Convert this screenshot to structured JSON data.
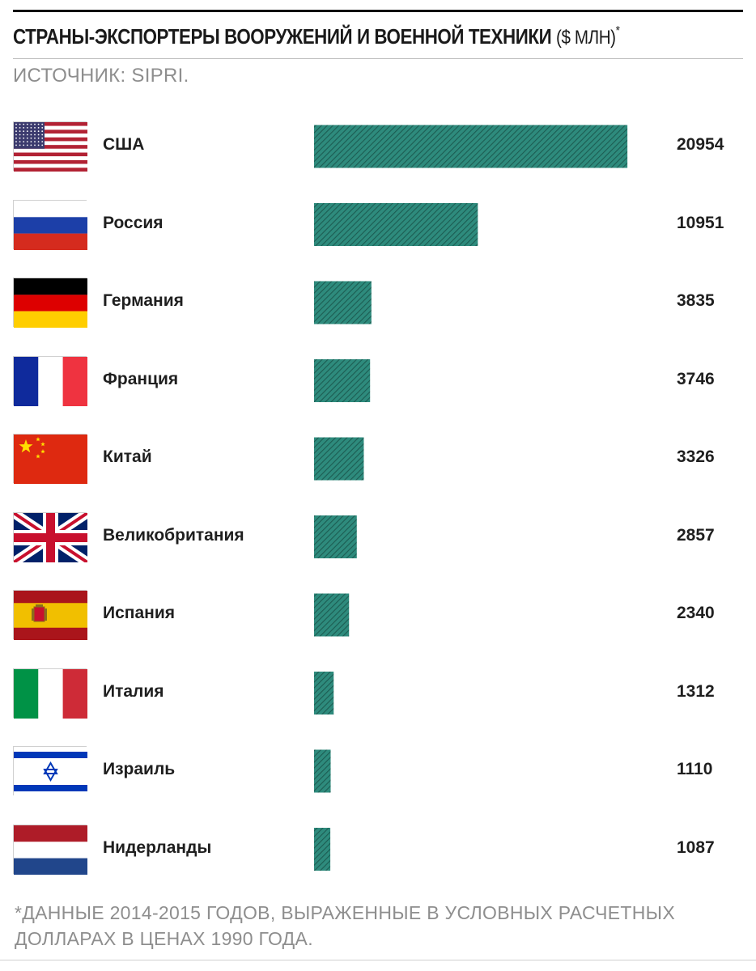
{
  "header": {
    "title": "СТРАНЫ-ЭКСПОРТЕРЫ ВООРУЖЕНИЙ И ВОЕННОЙ ТЕХНИКИ",
    "unit": "($ МЛН)",
    "unit_mark": "*",
    "source": "ИСТОЧНИК: SIPRI."
  },
  "footnote": "*ДАННЫЕ 2014-2015 ГОДОВ, ВЫРАЖЕННЫЕ В УСЛОВНЫХ РАСЧЕТНЫХ ДОЛЛАРАХ В ЦЕНАХ 1990 ГОДА.",
  "colors": {
    "bar": "#2e8b7d",
    "bar_hatch": "#1c5c52"
  },
  "chart_data": {
    "type": "bar",
    "orientation": "horizontal",
    "title": "СТРАНЫ-ЭКСПОРТЕРЫ ВООРУЖЕНИЙ И ВОЕННОЙ ТЕХНИКИ ($ МЛН)*",
    "categories": [
      "США",
      "Россия",
      "Германия",
      "Франция",
      "Китай",
      "Великобритания",
      "Испания",
      "Италия",
      "Израиль",
      "Нидерланды"
    ],
    "values": [
      20954,
      10951,
      3835,
      3746,
      3326,
      2857,
      2340,
      1312,
      1110,
      1087
    ],
    "value_labels": [
      "20954",
      "10951",
      "3835",
      "3746",
      "3326",
      "2857",
      "2340",
      "1312",
      "1110",
      "1087"
    ],
    "flags": [
      "us-flag-icon",
      "russia-flag-icon",
      "germany-flag-icon",
      "france-flag-icon",
      "china-flag-icon",
      "uk-flag-icon",
      "spain-flag-icon",
      "italy-flag-icon",
      "israel-flag-icon",
      "netherlands-flag-icon"
    ],
    "xlim": [
      0,
      21000
    ],
    "grid": false,
    "legend": "none"
  }
}
